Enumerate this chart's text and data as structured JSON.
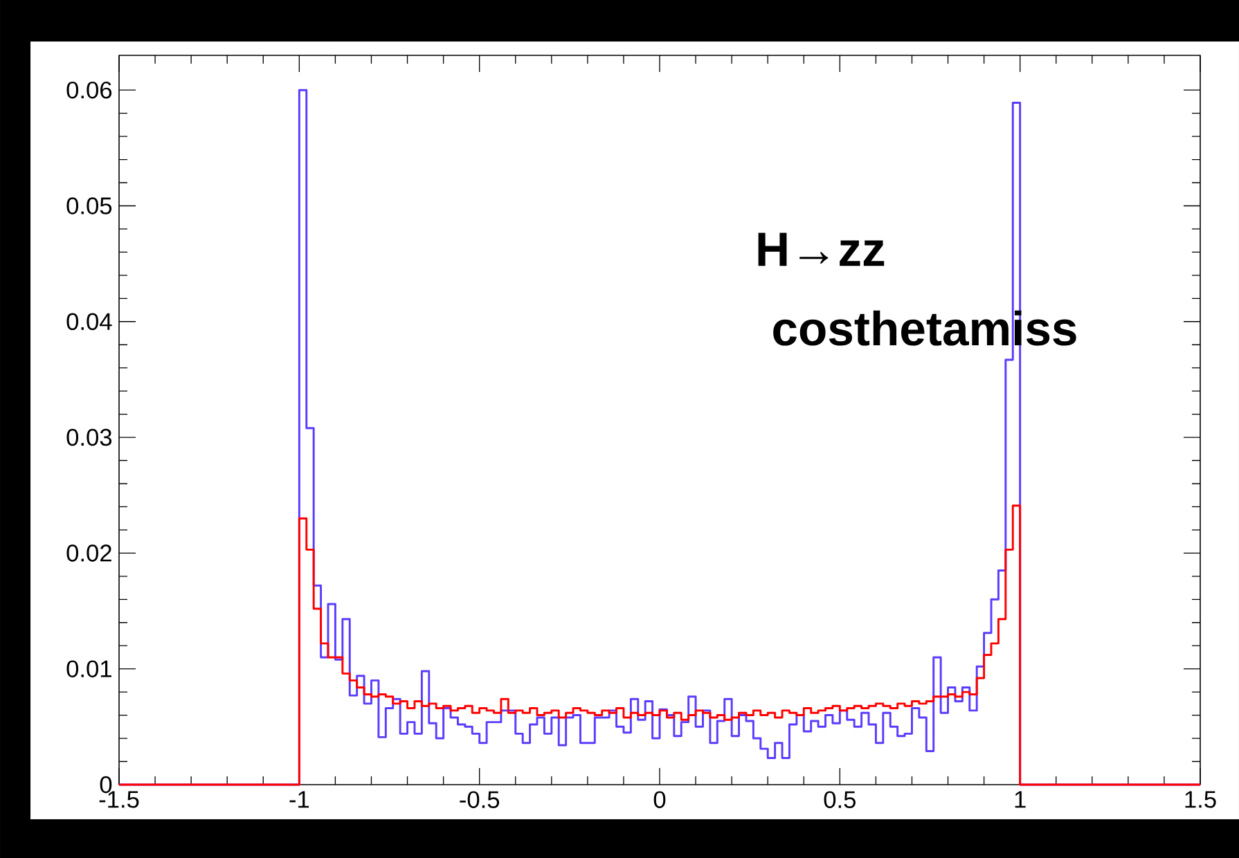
{
  "chart_data": {
    "type": "histogram",
    "bins": [
      -1.5,
      -1,
      -0.98,
      -0.96,
      -0.94,
      -0.92,
      -0.9,
      -0.88,
      -0.86,
      -0.84,
      -0.82,
      -0.8,
      -0.78,
      -0.76,
      -0.74,
      -0.72,
      -0.7,
      -0.68,
      -0.66,
      -0.64,
      -0.62,
      -0.6,
      -0.58,
      -0.56,
      -0.54,
      -0.52,
      -0.5,
      -0.48,
      -0.46,
      -0.44,
      -0.42,
      -0.4,
      -0.38,
      -0.36,
      -0.34,
      -0.32,
      -0.3,
      -0.28,
      -0.26,
      -0.24,
      -0.22,
      -0.2,
      -0.18,
      -0.16,
      -0.14,
      -0.12,
      -0.1,
      -0.08,
      -0.06,
      -0.04,
      -0.02,
      0,
      0.02,
      0.04,
      0.06,
      0.08,
      0.1,
      0.12,
      0.14,
      0.16,
      0.18,
      0.2,
      0.22,
      0.24,
      0.26,
      0.28,
      0.3,
      0.32,
      0.34,
      0.36,
      0.38,
      0.4,
      0.42,
      0.44,
      0.46,
      0.48,
      0.5,
      0.52,
      0.54,
      0.56,
      0.58,
      0.6,
      0.62,
      0.64,
      0.66,
      0.68,
      0.7,
      0.72,
      0.74,
      0.76,
      0.78,
      0.8,
      0.82,
      0.84,
      0.86,
      0.88,
      0.9,
      0.92,
      0.94,
      0.96,
      0.98,
      1,
      1.5
    ],
    "series": [
      {
        "color": "#5a3cff",
        "values": [
          0,
          0.06,
          0.0308,
          0.0172,
          0.011,
          0.0156,
          0.0108,
          0.0143,
          0.0077,
          0.0094,
          0.007,
          0.009,
          0.0041,
          0.0066,
          0.0074,
          0.0044,
          0.0054,
          0.0044,
          0.0098,
          0.0053,
          0.004,
          0.0066,
          0.0058,
          0.0052,
          0.005,
          0.0044,
          0.0036,
          0.0054,
          0.0054,
          0.0064,
          0.0064,
          0.0044,
          0.0036,
          0.0052,
          0.0058,
          0.0044,
          0.0058,
          0.0034,
          0.0058,
          0.006,
          0.0036,
          0.0036,
          0.0058,
          0.0058,
          0.0064,
          0.005,
          0.0045,
          0.0074,
          0.0056,
          0.0072,
          0.004,
          0.0065,
          0.006,
          0.0042,
          0.0054,
          0.0076,
          0.005,
          0.0064,
          0.0036,
          0.0055,
          0.0074,
          0.0042,
          0.006,
          0.0055,
          0.004,
          0.0031,
          0.0023,
          0.0036,
          0.0023,
          0.0052,
          0.006,
          0.0046,
          0.0055,
          0.005,
          0.006,
          0.0053,
          0.0064,
          0.0056,
          0.005,
          0.0062,
          0.0052,
          0.0036,
          0.0062,
          0.005,
          0.0042,
          0.0044,
          0.0066,
          0.0058,
          0.0029,
          0.011,
          0.0062,
          0.0084,
          0.0072,
          0.0084,
          0.0064,
          0.0102,
          0.0131,
          0.016,
          0.0185,
          0.0367,
          0.0589,
          0
        ]
      },
      {
        "color": "#ff0000",
        "values": [
          0,
          0.023,
          0.0203,
          0.0152,
          0.0122,
          0.011,
          0.011,
          0.0096,
          0.009,
          0.0084,
          0.0078,
          0.0076,
          0.0078,
          0.0076,
          0.007,
          0.0072,
          0.0066,
          0.0072,
          0.0068,
          0.007,
          0.0066,
          0.0068,
          0.0064,
          0.0066,
          0.0068,
          0.0062,
          0.0066,
          0.0064,
          0.0062,
          0.0074,
          0.0062,
          0.0064,
          0.0062,
          0.0066,
          0.006,
          0.0062,
          0.0064,
          0.0058,
          0.0062,
          0.0066,
          0.0064,
          0.0062,
          0.006,
          0.0064,
          0.0062,
          0.0066,
          0.0058,
          0.0062,
          0.006,
          0.0062,
          0.006,
          0.0064,
          0.0058,
          0.0062,
          0.0056,
          0.006,
          0.0064,
          0.0062,
          0.0058,
          0.006,
          0.0056,
          0.0058,
          0.0062,
          0.006,
          0.0064,
          0.006,
          0.0062,
          0.0058,
          0.0064,
          0.0062,
          0.006,
          0.0066,
          0.0062,
          0.0064,
          0.0066,
          0.0068,
          0.0064,
          0.0066,
          0.0068,
          0.0066,
          0.0068,
          0.007,
          0.0068,
          0.0066,
          0.007,
          0.0068,
          0.0072,
          0.007,
          0.0072,
          0.0076,
          0.0076,
          0.0078,
          0.0076,
          0.008,
          0.0078,
          0.0092,
          0.0112,
          0.0122,
          0.0143,
          0.0203,
          0.0241,
          0
        ]
      }
    ],
    "xlim": [
      -1.5,
      1.5
    ],
    "xticks": [
      -1.5,
      -1,
      -0.5,
      0,
      0.5,
      1,
      1.5
    ],
    "ylim": [
      0,
      0.063
    ],
    "yticks": [
      0,
      0.01,
      0.02,
      0.03,
      0.04,
      0.05,
      0.06
    ],
    "annotations": [
      "H→zz",
      "costhetamiss"
    ]
  }
}
